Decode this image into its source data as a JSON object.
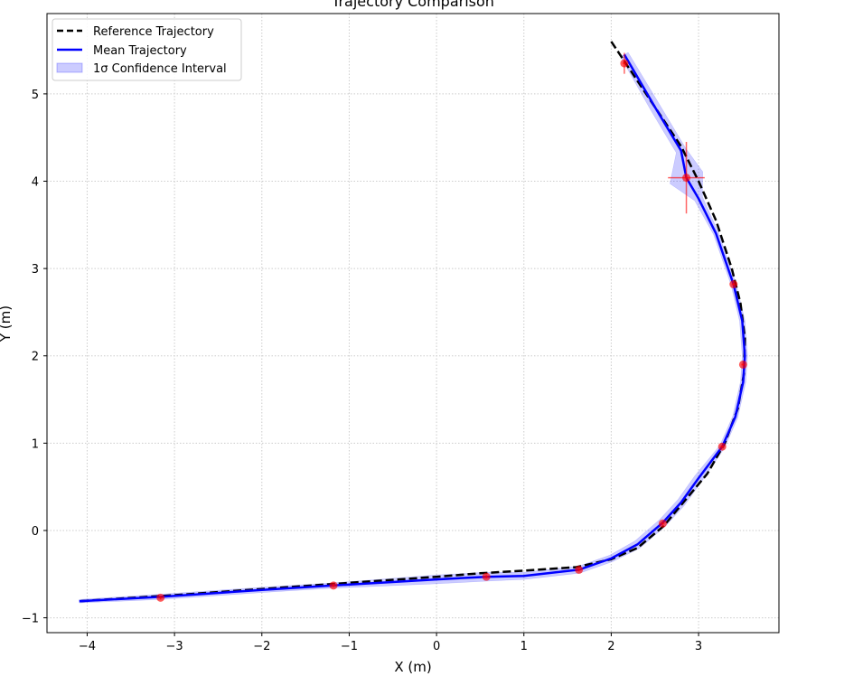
{
  "chart_data": {
    "type": "line",
    "title": "Trajectory Comparison",
    "xlabel": "X (m)",
    "ylabel": "Y (m)",
    "xlim": [
      -4.46,
      3.92
    ],
    "ylim": [
      -1.17,
      5.92
    ],
    "grid": true,
    "legend_position": "top-left",
    "xticks": [
      -4,
      -3,
      -2,
      -1,
      0,
      1,
      2,
      3
    ],
    "yticks": [
      -1,
      0,
      1,
      2,
      3,
      4,
      5
    ],
    "legend": [
      "Reference Trajectory",
      "Mean Trajectory",
      "1σ Confidence Interval"
    ],
    "colors": {
      "reference": "#000000",
      "mean": "#0000ff",
      "band": "#0000ff",
      "markers": "#ff0000"
    },
    "series": [
      {
        "name": "Reference Trajectory",
        "style": "dashed",
        "x": [
          2.0,
          2.2,
          2.5,
          2.8,
          3.0,
          3.2,
          3.38,
          3.48,
          3.53,
          3.52,
          3.45,
          3.3,
          3.1,
          2.85,
          2.6,
          2.3,
          2.0,
          1.6,
          1.0,
          0.5,
          0.0,
          -1.0,
          -2.0,
          -3.0,
          -4.09
        ],
        "y": [
          5.6,
          5.3,
          4.85,
          4.4,
          4.0,
          3.55,
          3.0,
          2.6,
          2.2,
          1.8,
          1.4,
          1.0,
          0.65,
          0.35,
          0.05,
          -0.2,
          -0.33,
          -0.42,
          -0.46,
          -0.49,
          -0.53,
          -0.6,
          -0.67,
          -0.74,
          -0.81
        ]
      },
      {
        "name": "Mean Trajectory",
        "style": "solid",
        "x": [
          2.15,
          2.5,
          2.8,
          2.86,
          3.0,
          3.2,
          3.4,
          3.5,
          3.53,
          3.51,
          3.42,
          3.27,
          3.0,
          2.8,
          2.59,
          2.3,
          2.0,
          1.63,
          1.0,
          0.57,
          0.0,
          -1.18,
          -2.0,
          -3.16,
          -4.09
        ],
        "y": [
          5.45,
          4.85,
          4.35,
          4.04,
          3.8,
          3.4,
          2.82,
          2.4,
          2.0,
          1.7,
          1.3,
          0.96,
          0.6,
          0.32,
          0.09,
          -0.16,
          -0.32,
          -0.45,
          -0.52,
          -0.53,
          -0.56,
          -0.63,
          -0.68,
          -0.76,
          -0.81
        ],
        "sigma": [
          0.05,
          0.06,
          0.06,
          0.2,
          0.05,
          0.03,
          0.03,
          0.03,
          0.03,
          0.03,
          0.03,
          0.03,
          0.05,
          0.05,
          0.05,
          0.05,
          0.04,
          0.04,
          0.04,
          0.05,
          0.05,
          0.03,
          0.03,
          0.03,
          0.02
        ]
      }
    ],
    "markers": {
      "x": [
        2.15,
        2.86,
        3.4,
        3.51,
        3.27,
        2.59,
        1.63,
        0.57,
        -1.18,
        -3.16
      ],
      "y": [
        5.35,
        4.04,
        2.82,
        1.9,
        0.96,
        0.08,
        -0.45,
        -0.53,
        -0.63,
        -0.77
      ],
      "xerr": [
        0.02,
        0.21,
        0.02,
        0.02,
        0.02,
        0.02,
        0.02,
        0.02,
        0.02,
        0.02
      ],
      "yerr": [
        0.12,
        0.41,
        0.02,
        0.02,
        0.02,
        0.02,
        0.02,
        0.02,
        0.02,
        0.02
      ]
    }
  }
}
